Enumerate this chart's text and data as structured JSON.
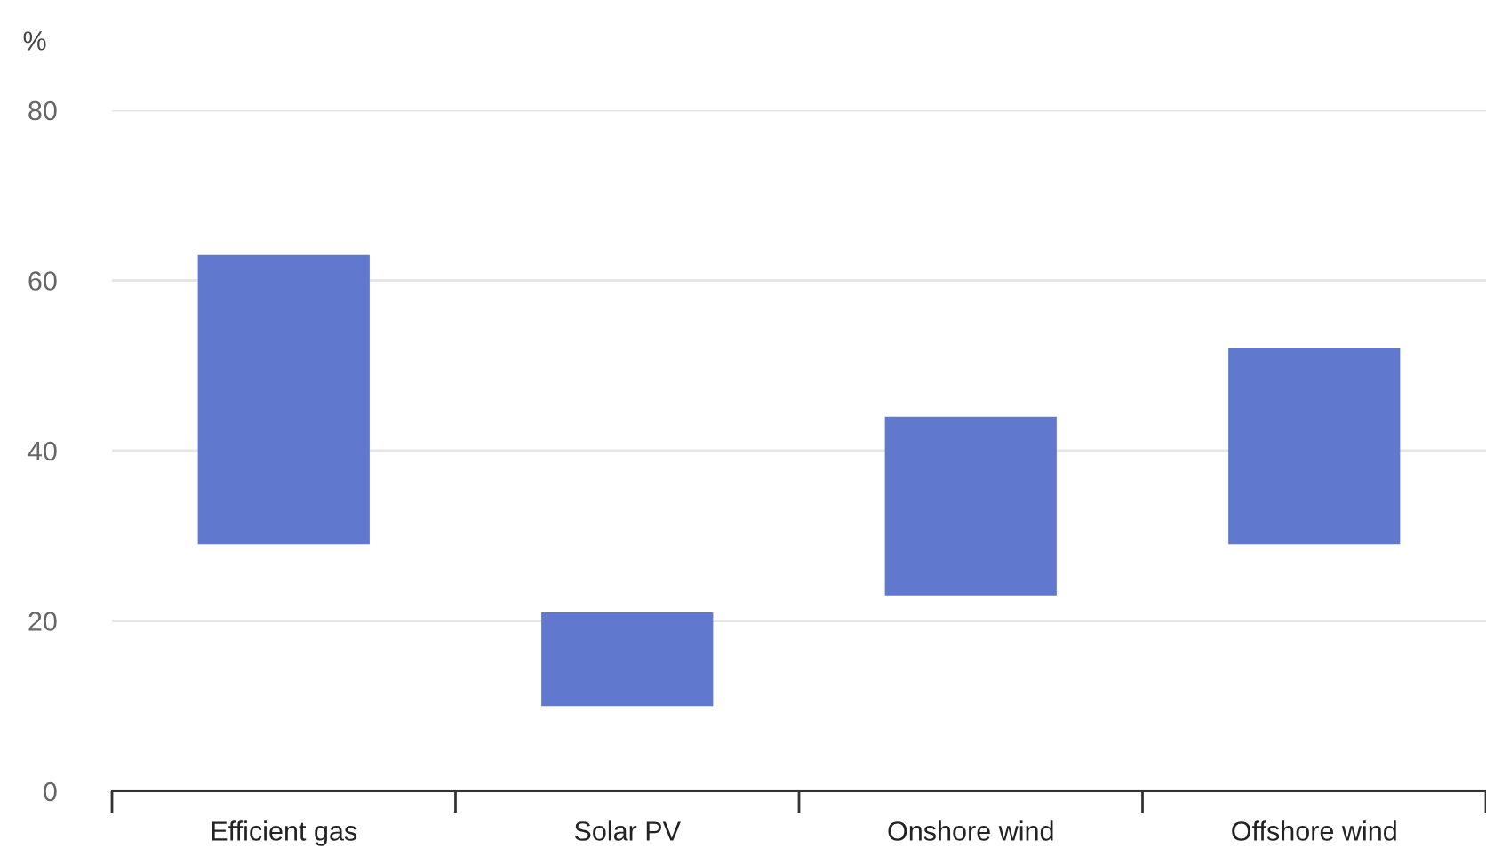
{
  "chart_data": {
    "type": "bar",
    "ylabel": "%",
    "categories": [
      "Efficient gas",
      "Solar PV",
      "Onshore wind",
      "Offshore wind"
    ],
    "base": [
      29,
      10,
      23,
      29
    ],
    "values": [
      34,
      11,
      21,
      23
    ],
    "color": "#6079cf",
    "ylim": [
      0,
      80
    ],
    "yticks": [
      0,
      20,
      40,
      60,
      80
    ],
    "grid": "y",
    "legend": false
  }
}
